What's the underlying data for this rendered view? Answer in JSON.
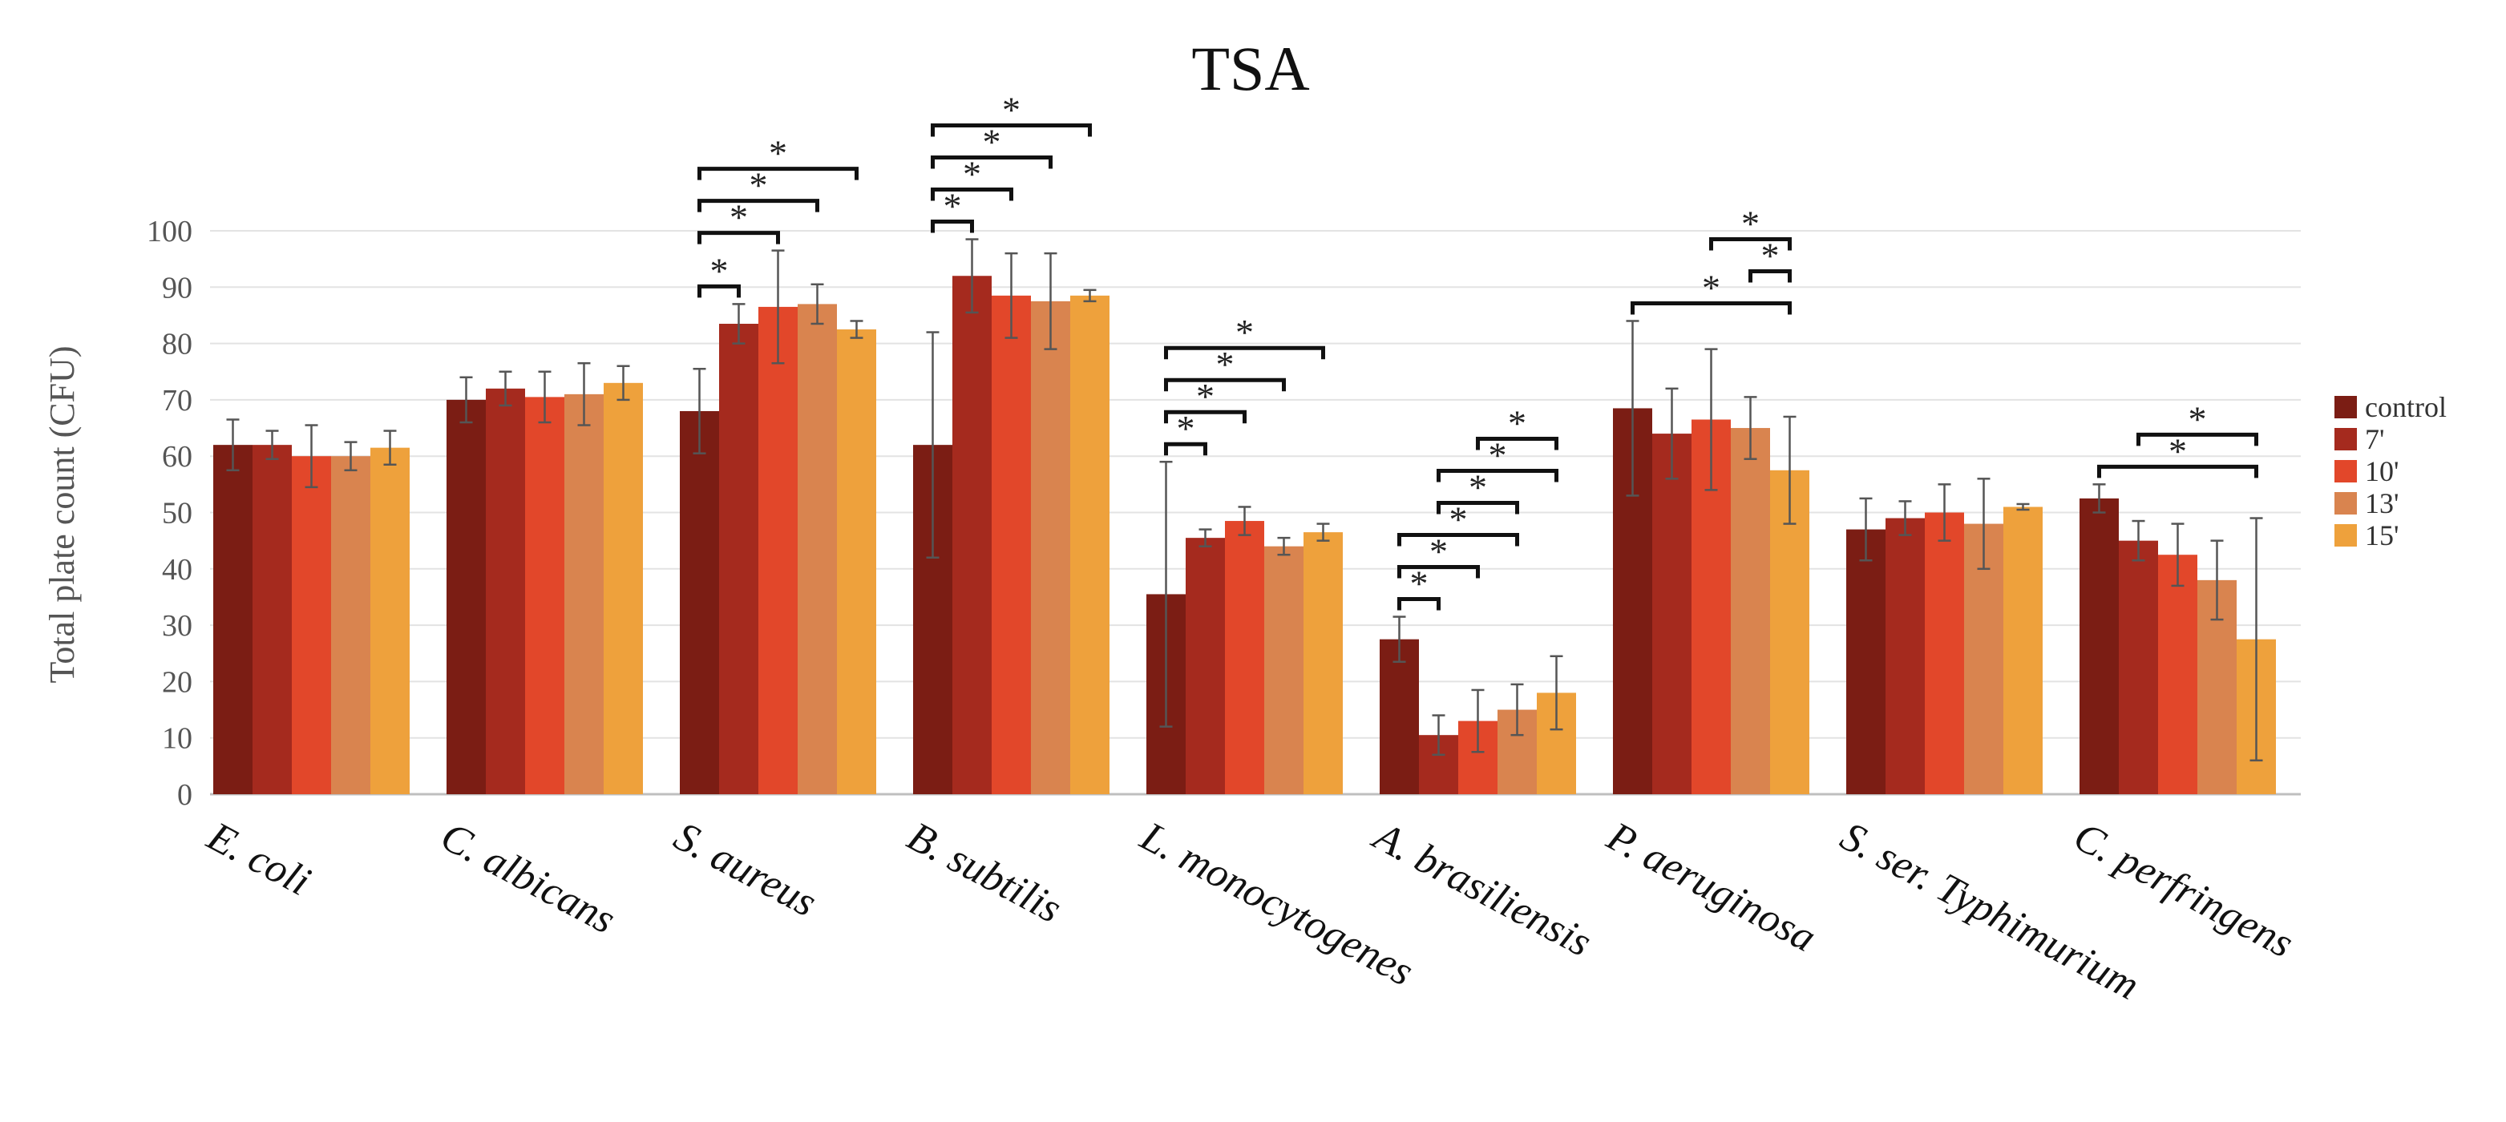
{
  "chart_data": {
    "type": "bar",
    "title": "TSA",
    "xlabel": "",
    "ylabel": "Total plate count (CFU)",
    "ylim": [
      0,
      100
    ],
    "yticks": [
      0,
      10,
      20,
      30,
      40,
      50,
      60,
      70,
      80,
      90,
      100
    ],
    "grid": "horizontal",
    "legend_position": "right",
    "categories": [
      "E. coli",
      "C. albicans",
      "S. aureus",
      "B. subtilis",
      "L. monocytogenes",
      "A.    brasiliensis",
      "P. aeruginosa",
      "S. ser. Typhimurium",
      "C. perfringens"
    ],
    "series": [
      {
        "name": "control",
        "color": "#7b1d14",
        "values": [
          62,
          70,
          68,
          62,
          35.5,
          27.5,
          68.5,
          47,
          52.5
        ],
        "errors": [
          4.5,
          4,
          7.5,
          20,
          23.5,
          4,
          15.5,
          5.5,
          2.5
        ]
      },
      {
        "name": "7'",
        "color": "#a52a1e",
        "values": [
          62,
          72,
          83.5,
          92,
          45.5,
          10.5,
          64,
          49,
          45
        ],
        "errors": [
          2.5,
          3,
          3.5,
          6.5,
          1.5,
          3.5,
          8,
          3,
          3.5
        ]
      },
      {
        "name": "10'",
        "color": "#e2472a",
        "values": [
          60,
          70.5,
          86.5,
          88.5,
          48.5,
          13,
          66.5,
          50,
          42.5
        ],
        "errors": [
          5.5,
          4.5,
          10,
          7.5,
          2.5,
          5.5,
          12.5,
          5,
          5.5
        ]
      },
      {
        "name": "13'",
        "color": "#d9844f",
        "values": [
          60,
          71,
          87,
          87.5,
          44,
          15,
          65,
          48,
          38
        ],
        "errors": [
          2.5,
          5.5,
          3.5,
          8.5,
          1.5,
          4.5,
          5.5,
          8,
          7
        ]
      },
      {
        "name": "15'",
        "color": "#eea13c",
        "values": [
          61.5,
          73,
          82.5,
          88.5,
          46.5,
          18,
          57.5,
          51,
          27.5
        ],
        "errors": [
          3,
          3,
          1.5,
          1,
          1.5,
          6.5,
          9.5,
          0.5,
          21.5
        ]
      }
    ],
    "significance": [
      {
        "category": 2,
        "from": 0,
        "to": 1,
        "label": "*"
      },
      {
        "category": 2,
        "from": 0,
        "to": 2,
        "label": "*"
      },
      {
        "category": 2,
        "from": 0,
        "to": 3,
        "label": "*"
      },
      {
        "category": 2,
        "from": 0,
        "to": 4,
        "label": "*"
      },
      {
        "category": 3,
        "from": 0,
        "to": 1,
        "label": "*"
      },
      {
        "category": 3,
        "from": 0,
        "to": 2,
        "label": "*"
      },
      {
        "category": 3,
        "from": 0,
        "to": 3,
        "label": "*"
      },
      {
        "category": 3,
        "from": 0,
        "to": 4,
        "label": "*"
      },
      {
        "category": 4,
        "from": 0,
        "to": 1,
        "label": "*"
      },
      {
        "category": 4,
        "from": 0,
        "to": 2,
        "label": "*"
      },
      {
        "category": 4,
        "from": 0,
        "to": 3,
        "label": "*"
      },
      {
        "category": 4,
        "from": 0,
        "to": 4,
        "label": "*"
      },
      {
        "category": 5,
        "from": 0,
        "to": 1,
        "label": "*"
      },
      {
        "category": 5,
        "from": 0,
        "to": 2,
        "label": "*"
      },
      {
        "category": 5,
        "from": 0,
        "to": 3,
        "label": "*"
      },
      {
        "category": 5,
        "from": 1,
        "to": 3,
        "label": "*"
      },
      {
        "category": 5,
        "from": 1,
        "to": 4,
        "label": "*"
      },
      {
        "category": 5,
        "from": 2,
        "to": 4,
        "label": "*"
      },
      {
        "category": 6,
        "from": 0,
        "to": 4,
        "label": "*"
      },
      {
        "category": 6,
        "from": 3,
        "to": 4,
        "label": "*"
      },
      {
        "category": 6,
        "from": 2,
        "to": 4,
        "label": "*"
      },
      {
        "category": 8,
        "from": 0,
        "to": 4,
        "label": "*"
      },
      {
        "category": 8,
        "from": 1,
        "to": 4,
        "label": "*"
      }
    ]
  }
}
